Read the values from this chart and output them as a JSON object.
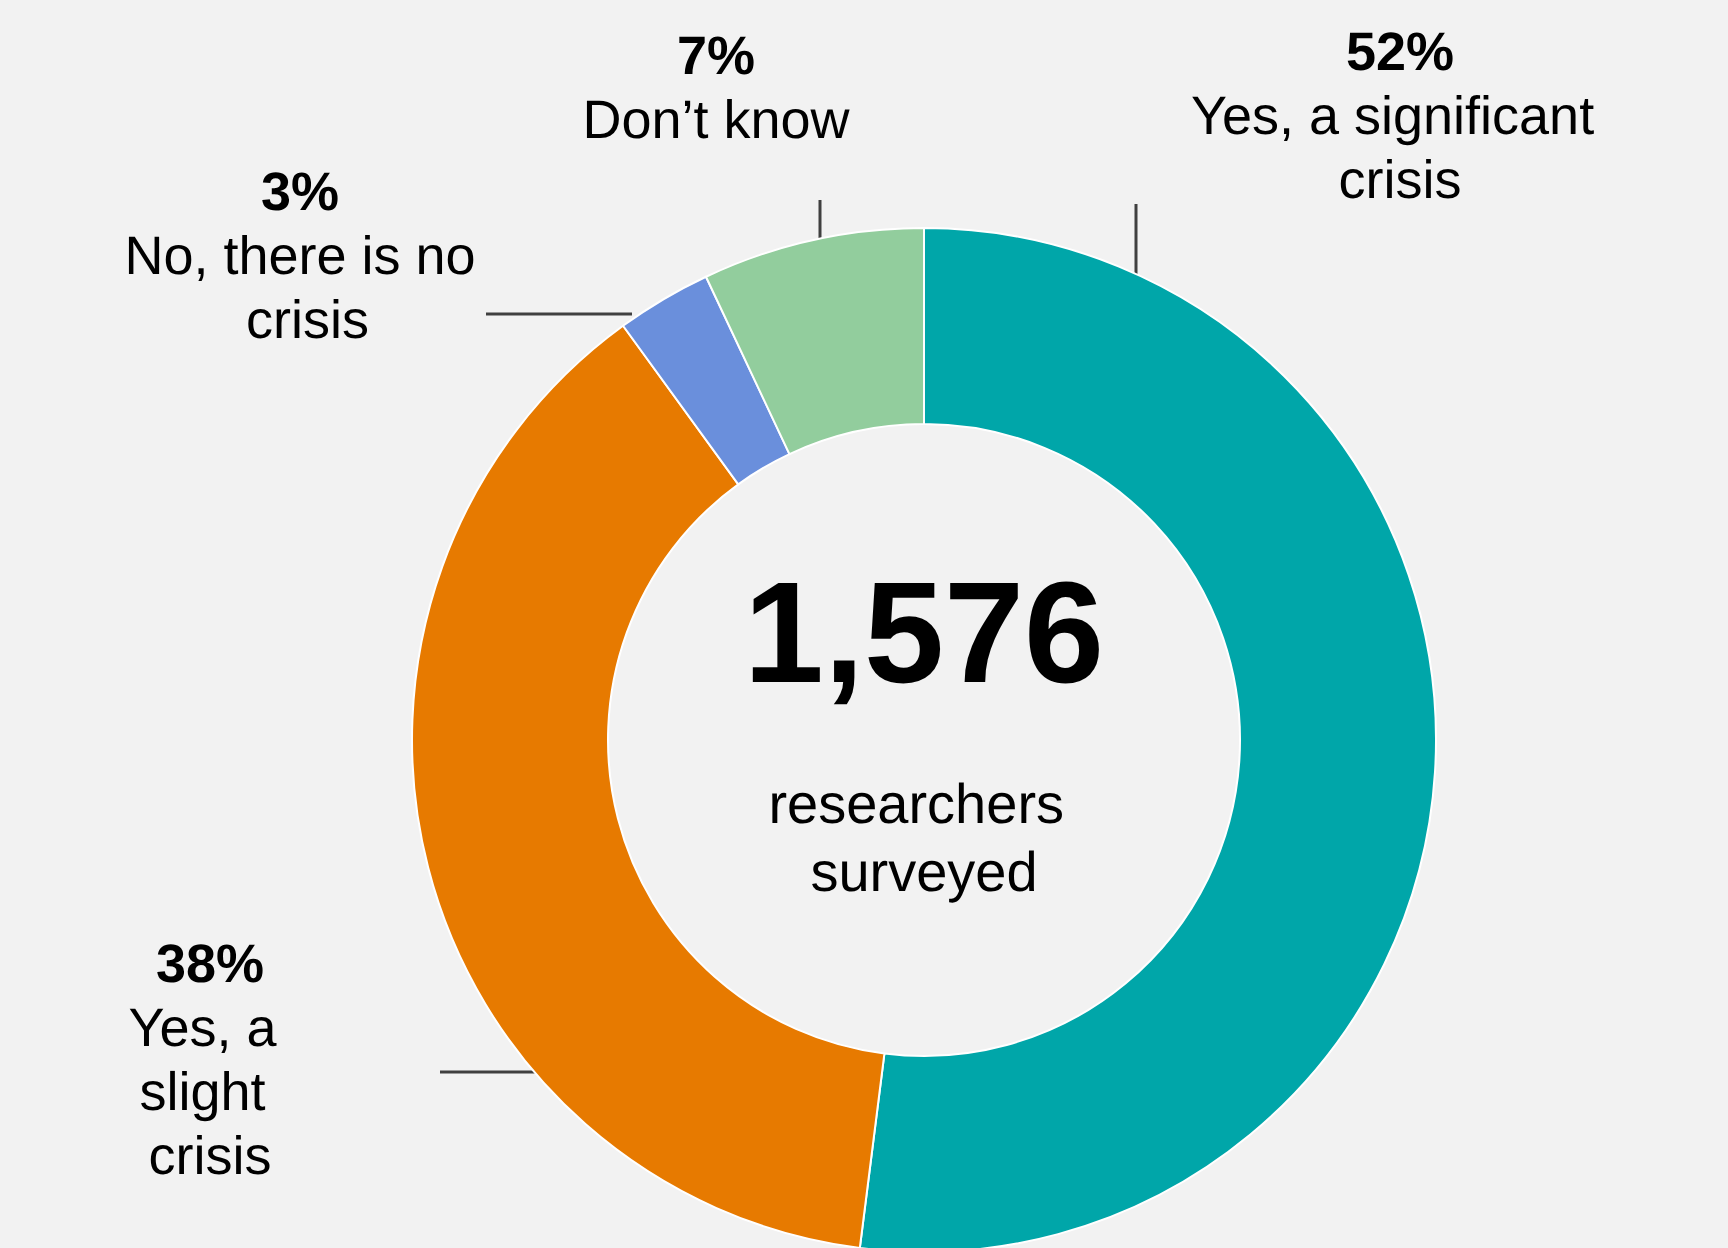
{
  "chart_data": {
    "type": "donut",
    "categories": [
      "Yes, a significant crisis",
      "Yes, a slight crisis",
      "No, there is no crisis",
      "Don’t know"
    ],
    "values": [
      52,
      38,
      3,
      7
    ],
    "value_labels": [
      "52%",
      "38%",
      "3%",
      "7%"
    ],
    "colors": [
      "#00a6a9",
      "#e77a00",
      "#6a8fdc",
      "#92cd9d"
    ],
    "annotations": [
      "1,576",
      "researchers surveyed"
    ],
    "legend": false
  }
}
